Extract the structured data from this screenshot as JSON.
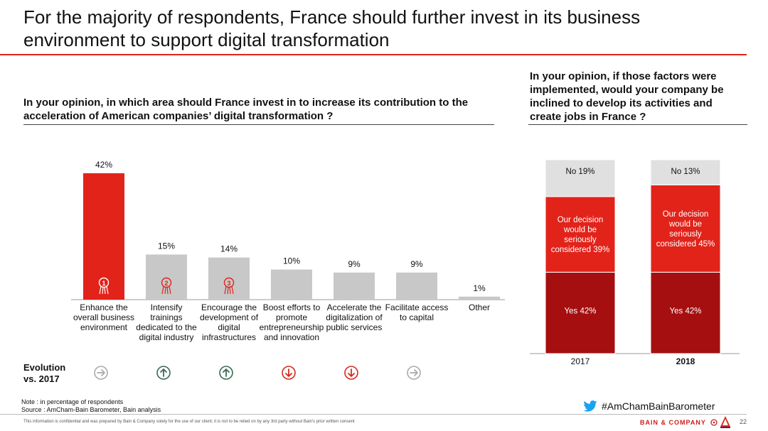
{
  "title": "For the majority of respondents, France should further invest in its business environment to support digital transformation",
  "left_question": "In your opinion, in which area should France invest in to increase its contribution to the acceleration of American companies’ digital transformation ?",
  "right_question": "In your opinion, if those factors were implemented, would your company be inclined to develop its activities and create jobs in France ?",
  "evolution_label": "Evolution vs. 2017",
  "note": "Note : in percentage of respondents",
  "source": "Source : AmCham-Bain Barometer, Bain analysis",
  "disclaimer": "This information is confidential and was prepared by Bain & Company solely for the use of our client; it is not to be relied on by any 3rd party without Bain's prior written consent",
  "hashtag": "#AmChamBainBarometer",
  "brand": "BAIN & COMPANY",
  "page_number": "22",
  "colors": {
    "accent": "#e2231a",
    "dark_red": "#a50f0f",
    "grey": "#c8c8c8",
    "light_grey": "#e0e0e0",
    "green": "#3a6b55"
  },
  "chart_data": [
    {
      "type": "bar",
      "categories": [
        "Enhance the overall business environment",
        "Intensify trainings dedicated to the digital industry",
        "Encourage the development of digital infrastructures",
        "Boost efforts to promote entrepreneurship and innovation",
        "Accelerate the digitalization of public services",
        "Facilitate access to capital",
        "Other"
      ],
      "values": [
        42,
        15,
        14,
        10,
        9,
        9,
        1
      ],
      "value_labels": [
        "42%",
        "15%",
        "14%",
        "10%",
        "9%",
        "9%",
        "1%"
      ],
      "highlight_index": 0,
      "rank_badges": [
        "1",
        "2",
        "3"
      ],
      "evolution": [
        "neutral",
        "up",
        "up",
        "down",
        "down",
        "neutral",
        null
      ],
      "ylim": [
        0,
        45
      ]
    },
    {
      "type": "bar",
      "stacked": true,
      "categories": [
        "2017",
        "2018"
      ],
      "series": [
        {
          "name": "Yes",
          "values": [
            42,
            42
          ],
          "labels": [
            "Yes 42%",
            "Yes 42%"
          ],
          "color": "#a50f0f"
        },
        {
          "name": "Our decision would be seriously considered",
          "values": [
            39,
            45
          ],
          "labels": [
            "Our decision would be seriously considered 39%",
            "Our decision would be seriously considered 45%"
          ],
          "color": "#e2231a"
        },
        {
          "name": "No",
          "values": [
            19,
            13
          ],
          "labels": [
            "No 19%",
            "No 13%"
          ],
          "color": "#e0e0e0"
        }
      ],
      "ylim": [
        0,
        100
      ]
    }
  ]
}
